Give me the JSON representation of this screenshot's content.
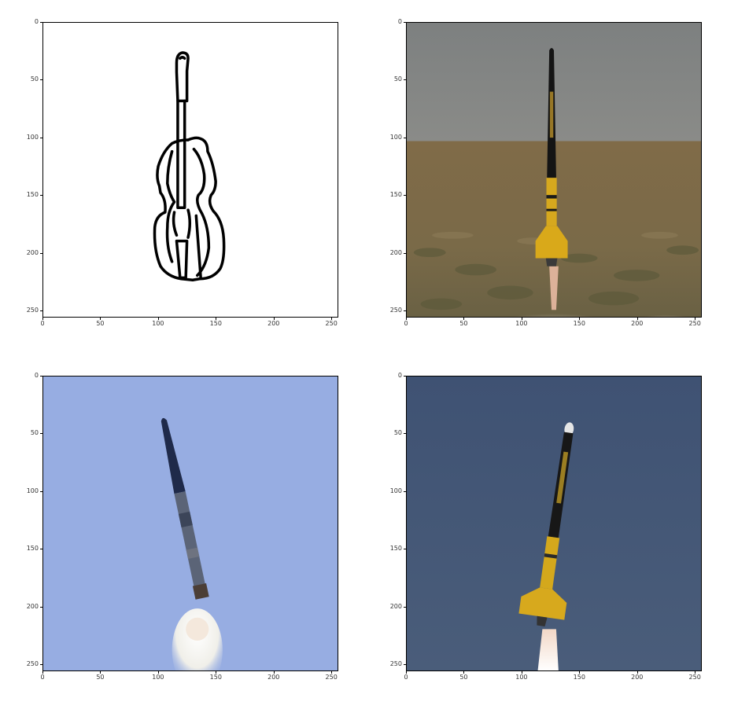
{
  "figure": {
    "x_ticks": [
      "0",
      "50",
      "100",
      "150",
      "200",
      "250"
    ],
    "y_ticks": [
      "0",
      "50",
      "100",
      "150",
      "200",
      "250"
    ],
    "panels": [
      {
        "name": "sketch-panel",
        "description_icon": "cello-sketch-icon",
        "background": "#ffffff"
      },
      {
        "name": "rocket-field-panel",
        "description_icon": "yellow-rocket-field-icon",
        "background": "#80827f"
      },
      {
        "name": "rocket-sky-blue-panel",
        "description_icon": "rocket-light-blue-sky-icon",
        "background": "#97ade2"
      },
      {
        "name": "rocket-sky-dark-panel",
        "description_icon": "rocket-dark-blue-sky-icon",
        "background": "#465875"
      }
    ]
  }
}
